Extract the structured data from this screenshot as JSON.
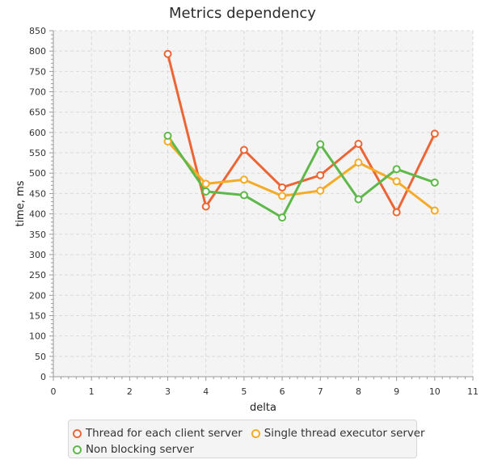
{
  "chart_data": {
    "type": "line",
    "title": "Metrics dependency",
    "xlabel": "delta",
    "ylabel": "time, ms",
    "xlim": [
      0,
      11
    ],
    "ylim": [
      0,
      850
    ],
    "x_ticks": [
      0,
      1,
      2,
      3,
      4,
      5,
      6,
      7,
      8,
      9,
      10,
      11
    ],
    "y_ticks": [
      0,
      50,
      100,
      150,
      200,
      250,
      300,
      350,
      400,
      450,
      500,
      550,
      600,
      650,
      700,
      750,
      800,
      850
    ],
    "grid": true,
    "legend_position": "bottom",
    "series": [
      {
        "name": "Thread for each client server",
        "color": "#ec6535",
        "x": [
          3,
          4,
          5,
          6,
          7,
          8,
          9,
          10
        ],
        "values": [
          793,
          418,
          557,
          465,
          495,
          572,
          404,
          597
        ]
      },
      {
        "name": "Single thread executor server",
        "color": "#f5ab28",
        "x": [
          3,
          4,
          5,
          6,
          7,
          8,
          9,
          10
        ],
        "values": [
          578,
          474,
          484,
          444,
          457,
          526,
          480,
          408
        ]
      },
      {
        "name": "Non blocking server",
        "color": "#5eb94a",
        "x": [
          3,
          4,
          5,
          6,
          7,
          8,
          9,
          10
        ],
        "values": [
          592,
          455,
          446,
          391,
          571,
          436,
          510,
          477
        ]
      }
    ]
  }
}
